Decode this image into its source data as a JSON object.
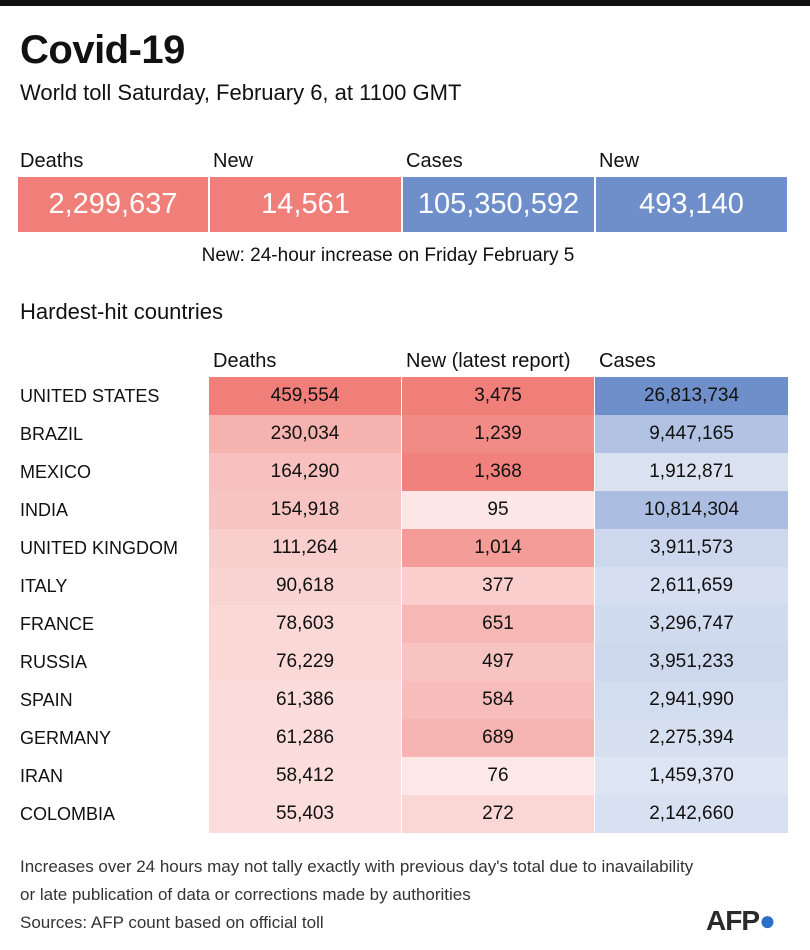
{
  "title": "Covid-19",
  "subtitle": "World toll Saturday, February 6, at 1100 GMT",
  "totals": {
    "deaths_label": "Deaths",
    "deaths": "2,299,637",
    "new_deaths_label": "New",
    "new_deaths": "14,561",
    "cases_label": "Cases",
    "cases": "105,350,592",
    "new_cases_label": "New",
    "new_cases": "493,140"
  },
  "note": "New: 24-hour increase on Friday February 5",
  "section_title": "Hardest-hit countries",
  "columns": {
    "deaths": "Deaths",
    "new": "New (latest report)",
    "cases": "Cases"
  },
  "colors": {
    "red_full": "#f07f7a",
    "blue_full": "#6f8fca",
    "red_empty": "#fdf1f0",
    "blue_empty": "#eef2fa"
  },
  "chart_data": {
    "type": "table",
    "title": "Hardest-hit countries",
    "columns": [
      "Deaths",
      "New (latest report)",
      "Cases"
    ],
    "rows": [
      {
        "country": "UNITED STATES",
        "deaths": 459554,
        "new": 3475,
        "cases": 26813734
      },
      {
        "country": "BRAZIL",
        "deaths": 230034,
        "new": 1239,
        "cases": 9447165
      },
      {
        "country": "MEXICO",
        "deaths": 164290,
        "new": 1368,
        "cases": 1912871
      },
      {
        "country": "INDIA",
        "deaths": 154918,
        "new": 95,
        "cases": 10814304
      },
      {
        "country": "UNITED KINGDOM",
        "deaths": 111264,
        "new": 1014,
        "cases": 3911573
      },
      {
        "country": "ITALY",
        "deaths": 90618,
        "new": 377,
        "cases": 2611659
      },
      {
        "country": "FRANCE",
        "deaths": 78603,
        "new": 651,
        "cases": 3296747
      },
      {
        "country": "RUSSIA",
        "deaths": 76229,
        "new": 497,
        "cases": 3951233
      },
      {
        "country": "SPAIN",
        "deaths": 61386,
        "new": 584,
        "cases": 2941990
      },
      {
        "country": "GERMANY",
        "deaths": 61286,
        "new": 689,
        "cases": 2275394
      },
      {
        "country": "IRAN",
        "deaths": 58412,
        "new": 76,
        "cases": 1459370
      },
      {
        "country": "COLOMBIA",
        "deaths": 55403,
        "new": 272,
        "cases": 2142660
      }
    ],
    "color_scale_max": {
      "deaths": 459554,
      "new": 1400,
      "cases": 26813734
    }
  },
  "footer": {
    "line1": "Increases over 24 hours may not tally exactly with previous day's total due to inavailability",
    "line2": "or late publication of data or corrections made by authorities",
    "line3": "Sources: AFP count based on official toll"
  },
  "logo": {
    "text": "AFP"
  }
}
